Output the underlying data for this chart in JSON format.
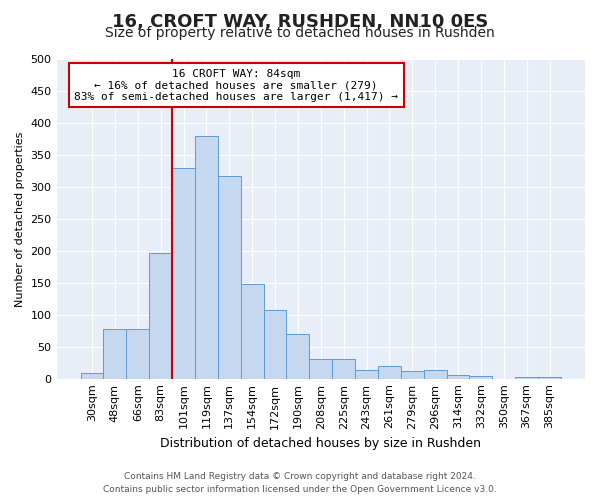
{
  "title": "16, CROFT WAY, RUSHDEN, NN10 0ES",
  "subtitle": "Size of property relative to detached houses in Rushden",
  "xlabel": "Distribution of detached houses by size in Rushden",
  "ylabel": "Number of detached properties",
  "categories": [
    "30sqm",
    "48sqm",
    "66sqm",
    "83sqm",
    "101sqm",
    "119sqm",
    "137sqm",
    "154sqm",
    "172sqm",
    "190sqm",
    "208sqm",
    "225sqm",
    "243sqm",
    "261sqm",
    "279sqm",
    "296sqm",
    "314sqm",
    "332sqm",
    "350sqm",
    "367sqm",
    "385sqm"
  ],
  "values": [
    9,
    77,
    78,
    197,
    330,
    379,
    317,
    148,
    108,
    70,
    30,
    30,
    14,
    20,
    12,
    13,
    5,
    4,
    0,
    2,
    3
  ],
  "bar_color": "#c5d8f0",
  "bar_edge_color": "#5b9bd5",
  "annotation_text_line1": "16 CROFT WAY: 84sqm",
  "annotation_text_line2": "← 16% of detached houses are smaller (279)",
  "annotation_text_line3": "83% of semi-detached houses are larger (1,417) →",
  "annotation_box_facecolor": "#ffffff",
  "annotation_box_edgecolor": "#cc0000",
  "vline_color": "#cc0000",
  "footer_line1": "Contains HM Land Registry data © Crown copyright and database right 2024.",
  "footer_line2": "Contains public sector information licensed under the Open Government Licence v3.0.",
  "ylim": [
    0,
    500
  ],
  "yticks": [
    0,
    50,
    100,
    150,
    200,
    250,
    300,
    350,
    400,
    450,
    500
  ],
  "bg_color": "#e8eef8",
  "grid_color": "#ffffff",
  "title_fontsize": 13,
  "subtitle_fontsize": 10,
  "xlabel_fontsize": 9,
  "ylabel_fontsize": 8,
  "tick_fontsize": 8,
  "annot_fontsize": 8,
  "footer_fontsize": 6.5
}
